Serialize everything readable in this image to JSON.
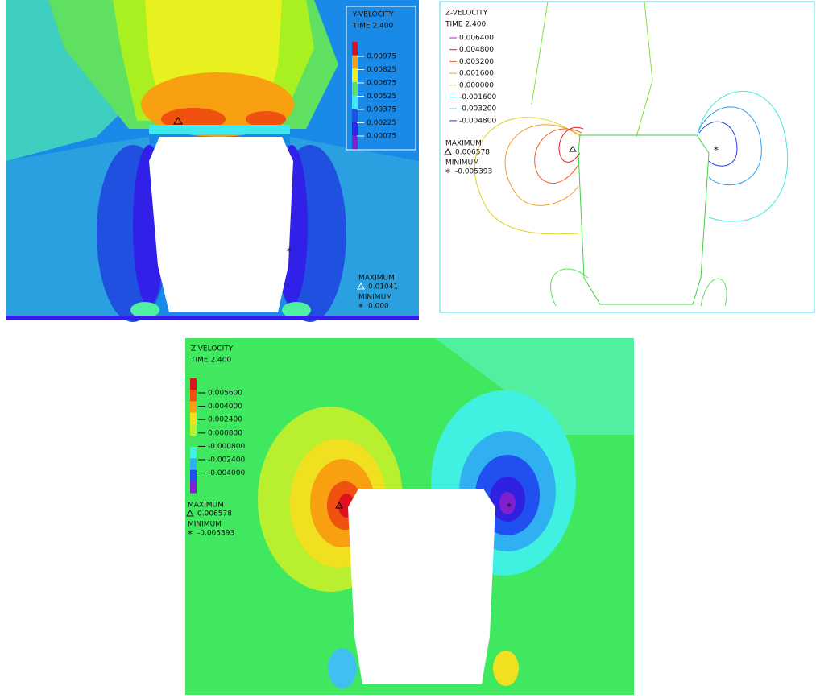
{
  "panels": [
    {
      "title": "Y-VELOCITY",
      "time": "TIME 2.400",
      "legend": [
        "0.00975",
        "0.00825",
        "0.00675",
        "0.00525",
        "0.00375",
        "0.00225",
        "0.00075"
      ],
      "max_label": "MAXIMUM",
      "max_value": "0.01041",
      "min_label": "MINIMUM",
      "min_value": "0.000"
    },
    {
      "title": "Z-VELOCITY",
      "time": "TIME 2.400",
      "legend": [
        "0.006400",
        "0.004800",
        "0.003200",
        "0.001600",
        "0.000000",
        "-0.001600",
        "-0.003200",
        "-0.004800"
      ],
      "max_label": "MAXIMUM",
      "max_value": "0.006578",
      "min_label": "MINIMUM",
      "min_value": "-0.005393"
    },
    {
      "title": "Z-VELOCITY",
      "time": "TIME 2.400",
      "legend": [
        "0.005600",
        "0.004000",
        "0.002400",
        "0.000800",
        "-0.000800",
        "-0.002400",
        "-0.004000"
      ],
      "max_label": "MAXIMUM",
      "max_value": "0.006578",
      "min_label": "MINIMUM",
      "min_value": "-0.005393"
    }
  ]
}
